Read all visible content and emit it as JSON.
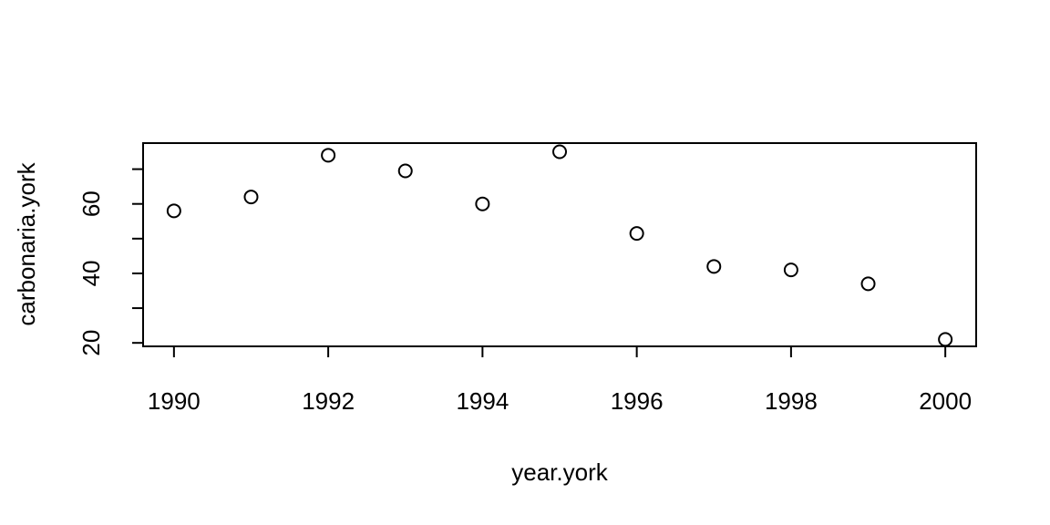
{
  "chart_data": {
    "type": "scatter",
    "title": "",
    "xlabel": "year.york",
    "ylabel": "carbonaria.york",
    "x": [
      1990,
      1991,
      1992,
      1993,
      1994,
      1995,
      1996,
      1997,
      1998,
      1999,
      2000
    ],
    "y": [
      58,
      62,
      74,
      69.5,
      60,
      75,
      51.5,
      42,
      41,
      37,
      21
    ],
    "xlim": [
      1989.6,
      2000.4
    ],
    "ylim": [
      19,
      77.5
    ],
    "xticks": [
      1990,
      1992,
      1994,
      1996,
      1998,
      2000
    ],
    "yticks_major": [
      20,
      40,
      60
    ],
    "yticks_minor": [
      30,
      50,
      70
    ],
    "grid": false,
    "legend": "none",
    "marker": "open-circle",
    "colors": {
      "ink": "#000000",
      "background": "#ffffff"
    }
  }
}
